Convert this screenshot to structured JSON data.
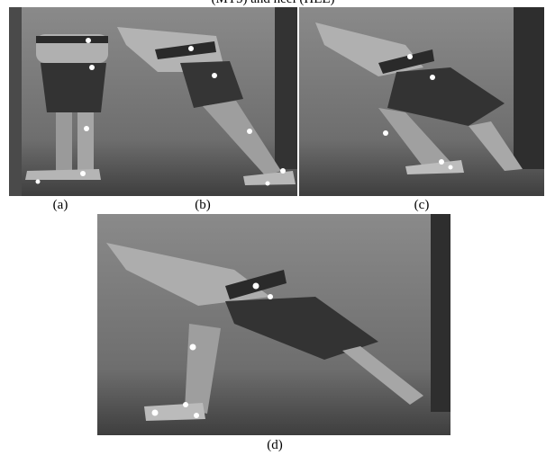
{
  "caption_fragment": "(MT5) and heel (HEE)",
  "panels": [
    {
      "label": "(a)"
    },
    {
      "label": "(b)"
    },
    {
      "label": "(c)"
    },
    {
      "label": "(d)"
    }
  ]
}
